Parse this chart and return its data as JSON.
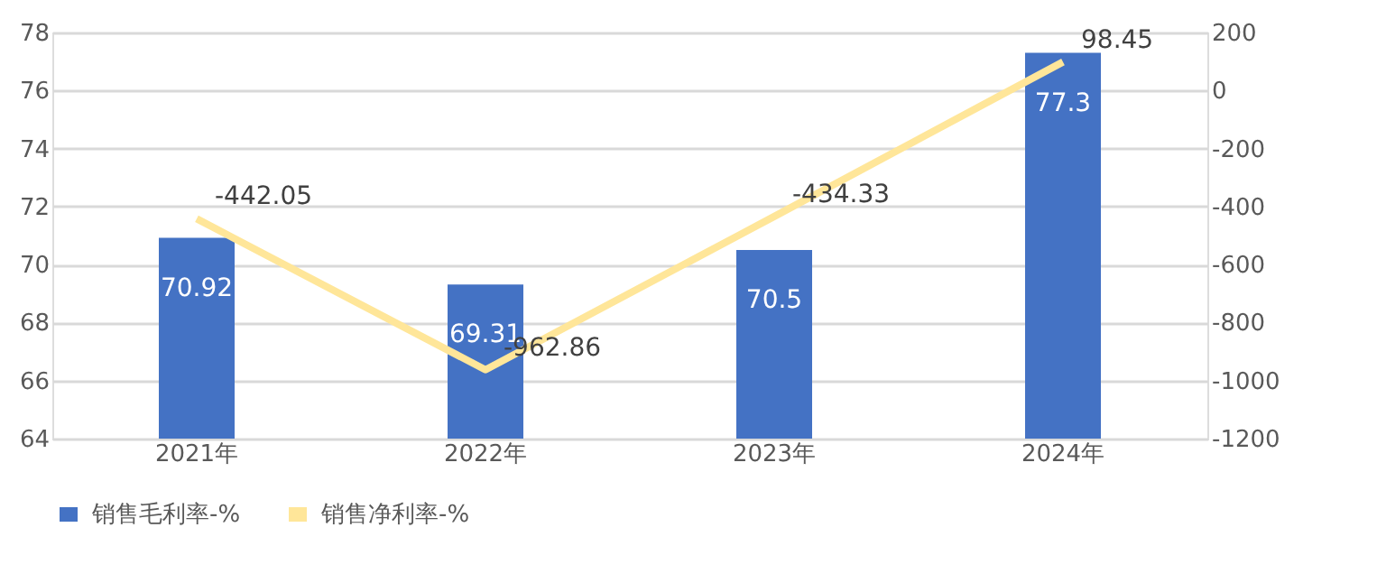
{
  "chart_data": {
    "type": "bar",
    "categories": [
      "2021年",
      "2022年",
      "2023年",
      "2024年"
    ],
    "series": [
      {
        "name": "销售毛利率-%",
        "color": "#4472c4",
        "values": [
          70.92,
          69.31,
          70.5,
          77.3
        ]
      },
      {
        "name": "销售净利率-%",
        "type": "line",
        "axis": "y2",
        "color": "#ffe699",
        "values": [
          -442.05,
          -962.86,
          -434.33,
          98.45
        ]
      }
    ],
    "ylim": [
      64,
      78
    ],
    "yticks": [
      64,
      66,
      68,
      70,
      72,
      74,
      76,
      78
    ],
    "y2lim": [
      -1200,
      200
    ],
    "y2ticks": [
      -1200,
      -1000,
      -800,
      -600,
      -400,
      -200,
      0,
      200
    ],
    "grid": "y",
    "legend": "bottom",
    "data_labels": true
  }
}
